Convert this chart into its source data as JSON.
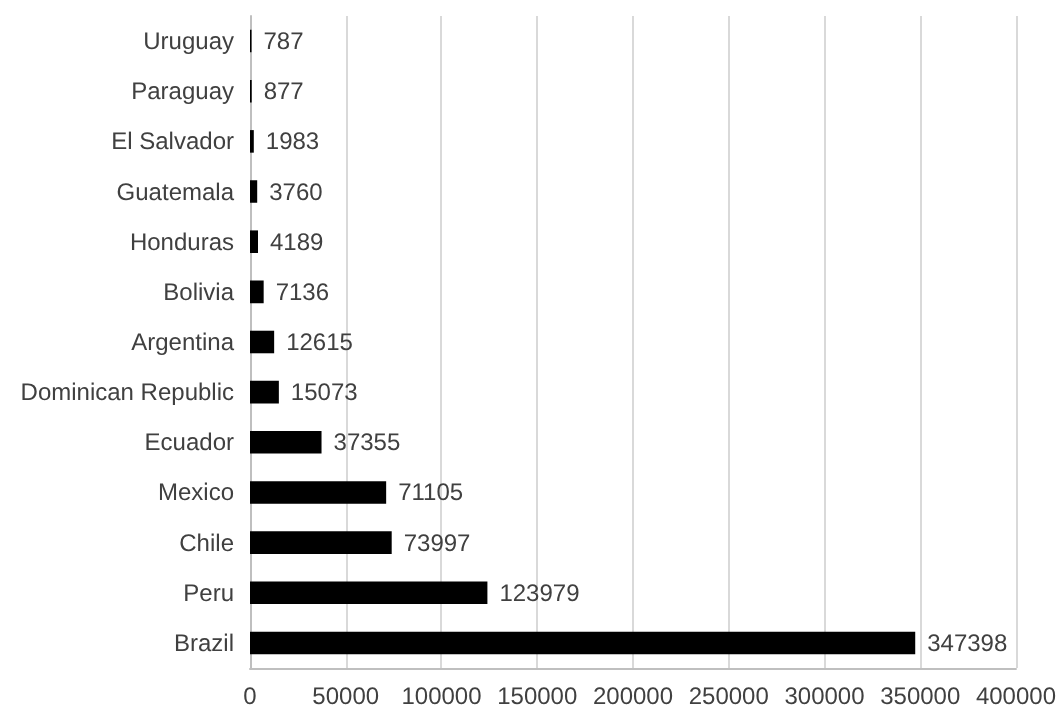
{
  "chart_data": {
    "type": "bar",
    "orientation": "horizontal",
    "categories": [
      "Uruguay",
      "Paraguay",
      "El Salvador",
      "Guatemala",
      "Honduras",
      "Bolivia",
      "Argentina",
      "Dominican Republic",
      "Ecuador",
      "Mexico",
      "Chile",
      "Peru",
      "Brazil"
    ],
    "values": [
      787,
      877,
      1983,
      3760,
      4189,
      7136,
      12615,
      15073,
      37355,
      71105,
      73997,
      123979,
      347398
    ],
    "color": "#000000",
    "xlim": [
      0,
      400000
    ],
    "xticks": [
      0,
      50000,
      100000,
      150000,
      200000,
      250000,
      300000,
      350000,
      400000
    ],
    "grid": "x",
    "data_labels": true
  }
}
